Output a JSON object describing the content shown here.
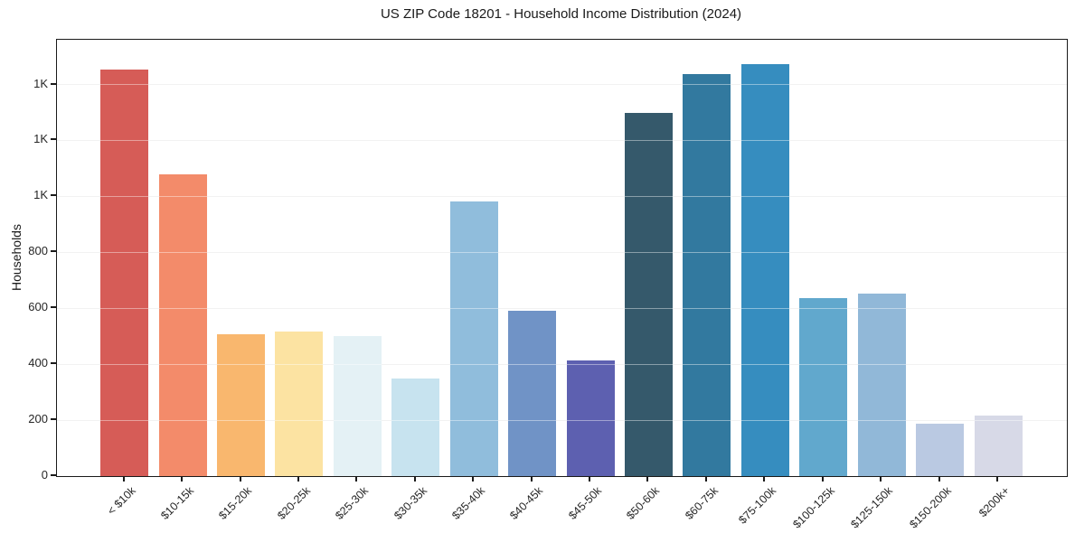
{
  "chart_data": {
    "type": "bar",
    "title": "US ZIP Code 18201 - Household Income Distribution (2024)",
    "ylabel": "Households",
    "xlabel": "",
    "categories": [
      "< $10k",
      "$10-15k",
      "$15-20k",
      "$20-25k",
      "$25-30k",
      "$30-35k",
      "$35-40k",
      "$40-45k",
      "$45-50k",
      "$50-60k",
      "$60-75k",
      "$75-100k",
      "$100-125k",
      "$125-150k",
      "$150-200k",
      "$200k+"
    ],
    "values": [
      1455,
      1078,
      508,
      516,
      500,
      348,
      982,
      590,
      415,
      1300,
      1438,
      1472,
      636,
      654,
      186,
      218
    ],
    "bar_colors": [
      "#d65c57",
      "#f38b6a",
      "#f9b76e",
      "#fce3a2",
      "#e4f1f5",
      "#c7e3ef",
      "#90bddc",
      "#7093c6",
      "#5d60b0",
      "#35596b",
      "#32799f",
      "#368dbf",
      "#61a8cd",
      "#91b8d8",
      "#bac9e2",
      "#d7d9e7"
    ],
    "ylim": [
      0,
      1560
    ],
    "yticks": [
      {
        "value": 0,
        "label": "0"
      },
      {
        "value": 200,
        "label": "200"
      },
      {
        "value": 400,
        "label": "400"
      },
      {
        "value": 600,
        "label": "600"
      },
      {
        "value": 800,
        "label": "800"
      },
      {
        "value": 1000,
        "label": "1K"
      },
      {
        "value": 1200,
        "label": "1K"
      },
      {
        "value": 1400,
        "label": "1K"
      }
    ],
    "grid": "horizontal gridlines on",
    "legend": "none",
    "background_color": "#ffffff",
    "axis_color": "#1a1a1a",
    "grid_color": "#e8e8e8"
  }
}
